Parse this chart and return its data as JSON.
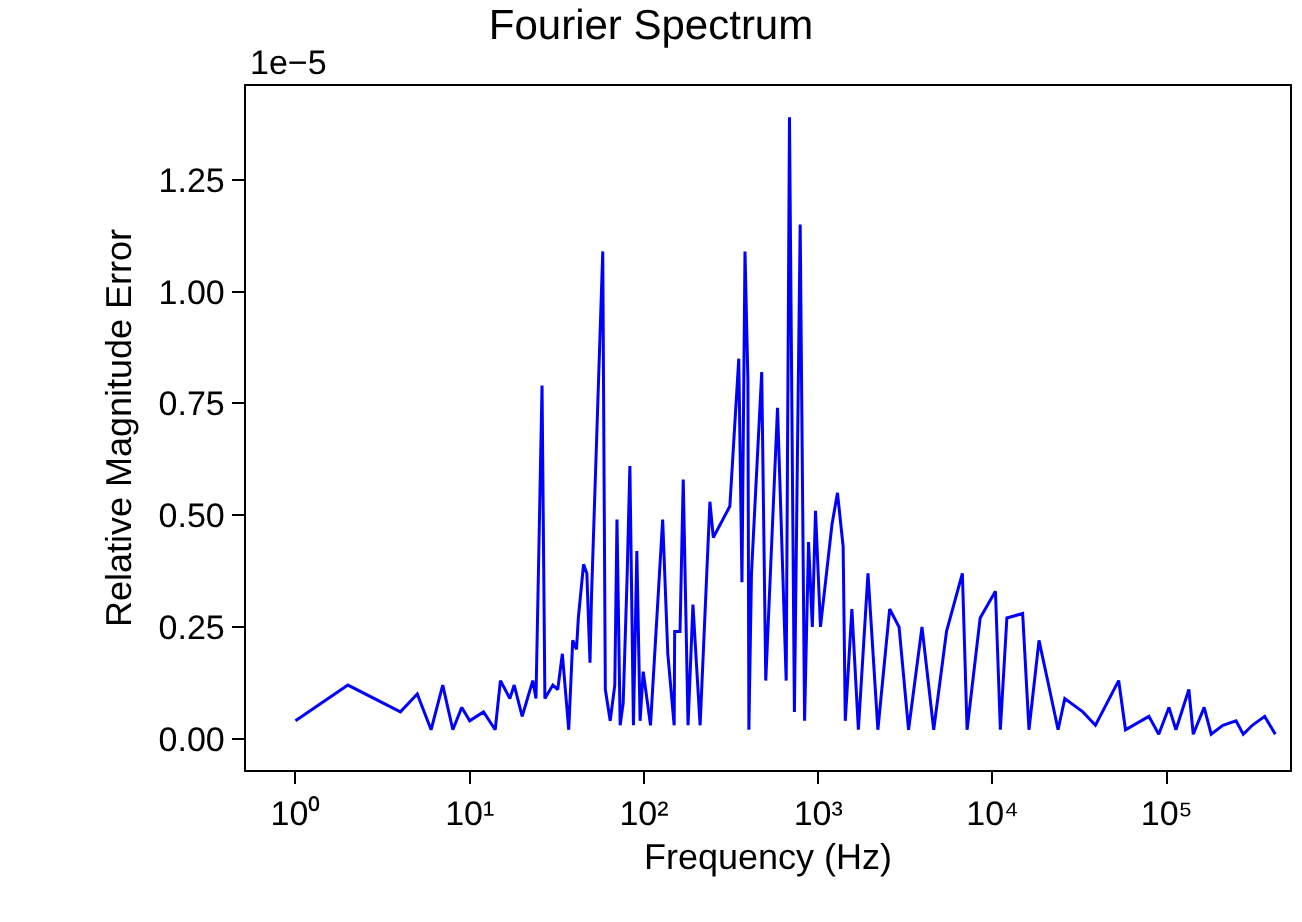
{
  "chart_data": {
    "type": "line",
    "title": "Fourier Spectrum",
    "xlabel": "Frequency (Hz)",
    "ylabel": "Relative Magnitude Error",
    "log": "x",
    "grid": false,
    "annotations": [
      "1e−5"
    ],
    "xlim": [
      0.52,
      510000
    ],
    "xticks": [
      {
        "value": 1,
        "label": "10⁰"
      },
      {
        "value": 10,
        "label": "10¹"
      },
      {
        "value": 100,
        "label": "10²"
      },
      {
        "value": 1000,
        "label": "10³"
      },
      {
        "value": 10000,
        "label": "10⁴"
      },
      {
        "value": 100000,
        "label": "10⁵"
      }
    ],
    "ylim": [
      -0.07,
      1.46
    ],
    "yticks": [
      {
        "value": 0,
        "label": "0.00"
      },
      0.25,
      {
        "value": 0.5,
        "label": "0.50"
      },
      0.75,
      {
        "value": 1,
        "label": "1.00"
      },
      1.25
    ],
    "series": [
      {
        "color": "#0000ff",
        "x": [
          1,
          2,
          4,
          5,
          6,
          7,
          8,
          9,
          10,
          12,
          14,
          15,
          17,
          18,
          20,
          23,
          24,
          26,
          27,
          30,
          32,
          34,
          37,
          39,
          41,
          42,
          45,
          47,
          49,
          50,
          58,
          60,
          64,
          68,
          70,
          73,
          76,
          80,
          83,
          87,
          91,
          95,
          99,
          109,
          128,
          137,
          149,
          150,
          161,
          168,
          179,
          191,
          210,
          239,
          250,
          311,
          350,
          365,
          380,
          395,
          400,
          414,
          474,
          500,
          584,
          655,
          684,
          730,
          788,
          835,
          880,
          925,
          965,
          1030,
          1200,
          1290,
          1390,
          1430,
          1560,
          1700,
          1930,
          2200,
          2570,
          2910,
          3300,
          3940,
          4600,
          5450,
          6720,
          7150,
          8500,
          10400,
          11100,
          12100,
          14900,
          16200,
          18500,
          21000,
          23800,
          26000,
          33000,
          39000,
          53000,
          58000,
          79000,
          90000,
          103000,
          113000,
          134000,
          142000,
          164000,
          180000,
          210000,
          250000,
          275000,
          310000,
          365000,
          420000
        ],
        "values": [
          0.04,
          0.12,
          0.06,
          0.1,
          0.02,
          0.12,
          0.02,
          0.07,
          0.04,
          0.06,
          0.02,
          0.13,
          0.09,
          0.12,
          0.05,
          0.13,
          0.09,
          0.79,
          0.09,
          0.12,
          0.11,
          0.19,
          0.02,
          0.22,
          0.2,
          0.27,
          0.39,
          0.37,
          0.17,
          0.32,
          1.09,
          0.11,
          0.04,
          0.12,
          0.49,
          0.03,
          0.08,
          0.36,
          0.61,
          0.03,
          0.42,
          0.04,
          0.15,
          0.03,
          0.49,
          0.19,
          0.03,
          0.24,
          0.24,
          0.58,
          0.03,
          0.3,
          0.03,
          0.53,
          0.45,
          0.52,
          0.85,
          0.35,
          1.09,
          0.8,
          0.02,
          0.37,
          0.82,
          0.13,
          0.74,
          0.13,
          1.39,
          0.06,
          1.15,
          0.04,
          0.44,
          0.25,
          0.51,
          0.25,
          0.48,
          0.55,
          0.43,
          0.04,
          0.29,
          0.02,
          0.37,
          0.02,
          0.29,
          0.25,
          0.02,
          0.25,
          0.02,
          0.24,
          0.37,
          0.02,
          0.27,
          0.33,
          0.02,
          0.27,
          0.28,
          0.02,
          0.22,
          0.12,
          0.02,
          0.09,
          0.06,
          0.03,
          0.13,
          0.02,
          0.05,
          0.01,
          0.07,
          0.02,
          0.11,
          0.01,
          0.07,
          0.01,
          0.03,
          0.04,
          0.01,
          0.03,
          0.05,
          0.01
        ]
      }
    ]
  }
}
